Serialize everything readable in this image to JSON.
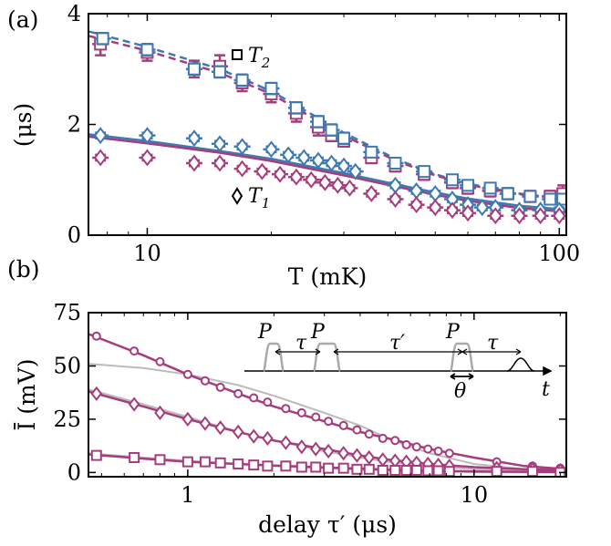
{
  "colors": {
    "magenta": "#a63c7c",
    "blue": "#3d7ab3",
    "gray": "#bbbbbb",
    "black": "#000000"
  },
  "chart_data": [
    {
      "panel_label": "(a)",
      "type": "scatter",
      "xlabel": "T (mK)",
      "ylabel": "(μs)",
      "xscale": "log",
      "xlim": [
        7.2,
        104
      ],
      "ylim": [
        0,
        4
      ],
      "xticks": [
        {
          "v": 10,
          "label": "10"
        },
        {
          "v": 100,
          "label": "100"
        }
      ],
      "yticks": [
        {
          "v": 0,
          "label": "0"
        },
        {
          "v": 2,
          "label": "2"
        },
        {
          "v": 4,
          "label": "4"
        }
      ],
      "legend_items": [
        {
          "marker": "square",
          "label": "T",
          "sub": "2"
        },
        {
          "marker": "diamond",
          "label": "T",
          "sub": "1"
        }
      ],
      "series": [
        {
          "marker": "square",
          "color": "#a63c7c",
          "x": [
            7.7,
            10,
            13,
            15,
            17,
            20,
            23,
            26,
            28,
            30,
            35,
            40,
            47,
            55,
            60,
            68,
            75,
            85,
            95,
            102
          ],
          "y": [
            3.45,
            3.3,
            3.0,
            3.05,
            2.75,
            2.55,
            2.2,
            1.95,
            1.8,
            1.7,
            1.4,
            1.25,
            1.1,
            0.95,
            0.85,
            0.8,
            0.75,
            0.7,
            0.7,
            0.75
          ],
          "err": [
            0.2,
            0.15,
            0.15,
            0.2,
            0.15,
            0.15,
            0.15,
            0.15,
            0.1,
            0.1,
            0.1,
            0.1,
            0.1,
            0.1,
            0.1,
            0.1,
            0.1,
            0.1,
            0.1,
            0.15
          ]
        },
        {
          "marker": "square",
          "color": "#3d7ab3",
          "x": [
            7.8,
            10,
            13,
            15,
            17,
            20,
            23,
            26,
            28,
            30,
            35,
            40,
            47,
            55,
            60,
            68,
            75,
            85,
            95,
            102
          ],
          "y": [
            3.55,
            3.35,
            3.0,
            2.95,
            2.8,
            2.65,
            2.3,
            2.05,
            1.9,
            1.75,
            1.5,
            1.3,
            1.15,
            1.0,
            0.9,
            0.85,
            0.75,
            0.7,
            0.65,
            0.65
          ],
          "err": [
            0.1,
            0.1,
            0.1,
            0.1,
            0.1,
            0.1,
            0.1,
            0.1,
            0.1,
            0.1,
            0.08,
            0.08,
            0.08,
            0.08,
            0.08,
            0.08,
            0.08,
            0.08,
            0.08,
            0.08
          ]
        },
        {
          "marker": "diamond",
          "color": "#3d7ab3",
          "x": [
            7.7,
            10,
            13,
            15,
            17,
            20,
            22,
            24,
            26,
            28,
            30,
            32,
            40,
            45,
            50,
            55,
            60,
            65,
            70,
            80,
            90,
            100
          ],
          "y": [
            1.8,
            1.8,
            1.75,
            1.65,
            1.6,
            1.55,
            1.45,
            1.4,
            1.35,
            1.3,
            1.25,
            1.15,
            0.9,
            0.8,
            0.75,
            0.65,
            0.55,
            0.5,
            0.5,
            0.45,
            0.45,
            0.45
          ],
          "err": [
            0.05,
            0.05,
            0.05,
            0.05,
            0.05,
            0.05,
            0.05,
            0.05,
            0.05,
            0.05,
            0.05,
            0.05,
            0.05,
            0.05,
            0.05,
            0.05,
            0.05,
            0.05,
            0.05,
            0.05,
            0.05,
            0.05
          ]
        },
        {
          "marker": "diamond",
          "color": "#a63c7c",
          "x": [
            7.7,
            10,
            13,
            15,
            17,
            19,
            21,
            23,
            25,
            27,
            29,
            31,
            35,
            40,
            45,
            50,
            55,
            60,
            70,
            80,
            90,
            100
          ],
          "y": [
            1.4,
            1.4,
            1.3,
            1.3,
            1.2,
            1.15,
            1.1,
            1.05,
            1.0,
            0.95,
            0.9,
            0.85,
            0.75,
            0.65,
            0.55,
            0.5,
            0.45,
            0.4,
            0.35,
            0.35,
            0.35,
            0.35
          ],
          "err": [
            0.05,
            0.05,
            0.05,
            0.05,
            0.05,
            0.05,
            0.05,
            0.05,
            0.05,
            0.05,
            0.05,
            0.05,
            0.05,
            0.05,
            0.05,
            0.05,
            0.05,
            0.05,
            0.05,
            0.05,
            0.05,
            0.05
          ]
        }
      ],
      "fits": [
        {
          "style": "dashed",
          "color": "#3d7ab3",
          "x": [
            7.2,
            10,
            15,
            20,
            30,
            40,
            50,
            60,
            80,
            104
          ],
          "y": [
            3.68,
            3.4,
            3.0,
            2.6,
            1.85,
            1.38,
            1.1,
            0.93,
            0.75,
            0.66
          ]
        },
        {
          "style": "dashed",
          "color": "#a63c7c",
          "x": [
            7.2,
            10,
            15,
            20,
            30,
            40,
            50,
            60,
            80,
            104
          ],
          "y": [
            3.6,
            3.33,
            2.93,
            2.55,
            1.8,
            1.35,
            1.08,
            0.91,
            0.74,
            0.65
          ]
        },
        {
          "style": "solid",
          "color": "#3d7ab3",
          "x": [
            7.2,
            10,
            15,
            20,
            30,
            40,
            50,
            60,
            80,
            104
          ],
          "y": [
            1.82,
            1.7,
            1.52,
            1.38,
            1.12,
            0.92,
            0.77,
            0.66,
            0.53,
            0.46
          ]
        },
        {
          "style": "solid",
          "color": "#a63c7c",
          "x": [
            7.2,
            10,
            15,
            20,
            30,
            40,
            50,
            60,
            80,
            104
          ],
          "y": [
            1.78,
            1.66,
            1.49,
            1.34,
            1.08,
            0.88,
            0.73,
            0.62,
            0.49,
            0.42
          ]
        }
      ]
    },
    {
      "panel_label": "(b)",
      "type": "line",
      "xlabel": "delay τ′ (μs)",
      "ylabel": "Ī (mV)",
      "xscale": "log",
      "xlim": [
        0.45,
        21
      ],
      "ylim": [
        -2,
        75
      ],
      "xticks": [
        {
          "v": 1,
          "label": "1"
        },
        {
          "v": 10,
          "label": "10"
        }
      ],
      "yticks": [
        {
          "v": 0,
          "label": "0"
        },
        {
          "v": 25,
          "label": "25"
        },
        {
          "v": 50,
          "label": "50"
        },
        {
          "v": 75,
          "label": "75"
        }
      ],
      "series": [
        {
          "marker": "circle",
          "color": "#a63c7c",
          "x": [
            0.48,
            0.65,
            0.8,
            1.0,
            1.15,
            1.3,
            1.5,
            1.7,
            1.9,
            2.2,
            2.5,
            2.8,
            3.1,
            3.5,
            3.9,
            4.3,
            4.8,
            5.3,
            5.8,
            6.3,
            6.9,
            7.5,
            8.2,
            12,
            16,
            20
          ],
          "y": [
            64,
            57,
            52,
            46,
            43,
            40,
            37,
            35,
            33,
            30,
            28,
            26,
            24,
            22,
            20,
            18,
            16,
            15,
            13,
            12,
            11,
            10,
            9,
            5,
            3,
            2
          ]
        },
        {
          "marker": "diamond",
          "color": "#a63c7c",
          "x": [
            0.48,
            0.65,
            0.8,
            1.0,
            1.15,
            1.3,
            1.5,
            1.7,
            1.9,
            2.2,
            2.5,
            2.8,
            3.1,
            3.5,
            3.9,
            4.3,
            4.8,
            5.3,
            5.8,
            6.3,
            6.9,
            7.5,
            8.2,
            12,
            16,
            20
          ],
          "y": [
            37,
            32,
            28,
            25,
            23,
            21,
            19,
            17,
            16,
            14,
            12,
            11,
            10,
            9,
            8,
            7,
            6,
            5.5,
            5,
            4.5,
            4,
            3.5,
            3,
            2,
            1.5,
            1
          ]
        },
        {
          "marker": "square",
          "color": "#a63c7c",
          "x": [
            0.48,
            0.65,
            0.8,
            1.0,
            1.15,
            1.3,
            1.5,
            1.7,
            1.9,
            2.2,
            2.5,
            2.8,
            3.1,
            3.5,
            3.9,
            4.3,
            4.8,
            5.3,
            5.8,
            6.3,
            6.9,
            7.5,
            8.2,
            12,
            16,
            20
          ],
          "y": [
            8,
            7,
            6,
            5,
            5,
            4.5,
            4,
            3.5,
            3,
            3,
            2.5,
            2.5,
            2,
            2,
            1.5,
            1.5,
            1,
            1,
            1,
            1,
            0.8,
            0.8,
            0.5,
            0.5,
            0.5,
            0
          ]
        }
      ],
      "fits": [
        {
          "style": "solid",
          "color": "#a63c7c",
          "x": [
            0.45,
            0.7,
            1,
            1.5,
            2,
            3,
            4,
            5,
            7,
            10,
            15,
            21
          ],
          "y": [
            65,
            55,
            46,
            37,
            31,
            24,
            19,
            16,
            11,
            7,
            3,
            1.5
          ]
        },
        {
          "style": "solid",
          "color": "#a63c7c",
          "x": [
            0.45,
            0.7,
            1,
            1.5,
            2,
            3,
            4,
            5,
            7,
            10,
            15,
            21
          ],
          "y": [
            38,
            31,
            25,
            19,
            15,
            11,
            8,
            6,
            4,
            2.5,
            1.5,
            1
          ]
        },
        {
          "style": "solid",
          "color": "#a63c7c",
          "x": [
            0.45,
            0.7,
            1,
            1.5,
            2,
            3,
            4,
            5,
            7,
            10,
            15,
            21
          ],
          "y": [
            8.5,
            6.5,
            5,
            4,
            3.2,
            2.4,
            1.8,
            1.3,
            0.8,
            0.5,
            0.3,
            0.2
          ]
        },
        {
          "style": "gray",
          "color": "#bbbbbb",
          "x": [
            0.45,
            0.7,
            1,
            1.5,
            2,
            3,
            4,
            5,
            7,
            10,
            15,
            21
          ],
          "y": [
            51,
            49,
            46,
            41,
            36,
            28,
            22,
            16,
            9,
            4,
            1.5,
            0.5
          ]
        },
        {
          "style": "gray",
          "color": "#bbbbbb",
          "x": [
            0.45,
            0.7,
            1,
            1.5,
            2,
            3,
            4,
            5,
            7,
            10,
            15,
            21
          ],
          "y": [
            39,
            32,
            26,
            19,
            15,
            10,
            7,
            5,
            3,
            1.5,
            0.7,
            0.3
          ]
        },
        {
          "style": "gray",
          "color": "#bbbbbb",
          "x": [
            0.45,
            0.7,
            1,
            1.5,
            2,
            3,
            4,
            5,
            7,
            10,
            15,
            21
          ],
          "y": [
            9,
            7,
            5.5,
            4,
            3,
            2,
            1.3,
            0.9,
            0.5,
            0.2,
            0.1,
            0
          ]
        }
      ],
      "inset": {
        "labels": [
          {
            "t": "P"
          },
          {
            "t": "τ"
          },
          {
            "t": "P"
          },
          {
            "t": "τ′"
          },
          {
            "t": "P"
          },
          {
            "t": "τ"
          },
          {
            "t": "θ"
          },
          {
            "t": "t"
          }
        ]
      }
    }
  ]
}
